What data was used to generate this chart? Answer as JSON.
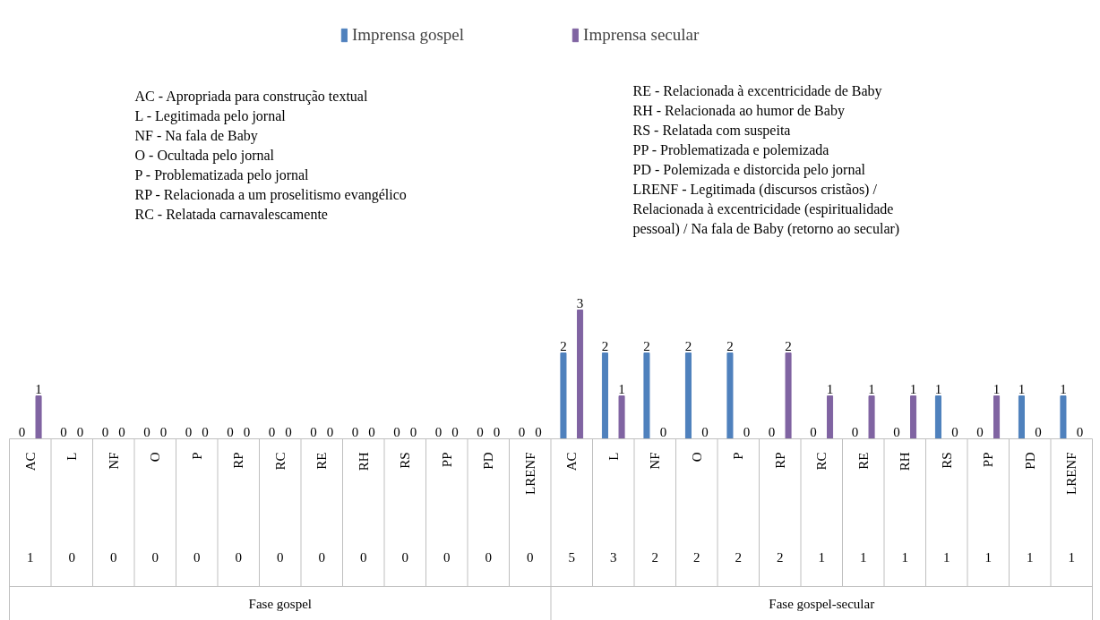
{
  "chart_data": {
    "type": "bar",
    "categories": [
      "AC",
      "L",
      "NF",
      "O",
      "P",
      "RP",
      "RC",
      "RE",
      "RH",
      "RS",
      "PP",
      "PD",
      "LRENF",
      "AC",
      "L",
      "NF",
      "O",
      "P",
      "RP",
      "RC",
      "RE",
      "RH",
      "RS",
      "PP",
      "PD",
      "LRENF"
    ],
    "series": [
      {
        "name": "Imprensa gospel",
        "color": "#4f81bd",
        "values": [
          0,
          0,
          0,
          0,
          0,
          0,
          0,
          0,
          0,
          0,
          0,
          0,
          0,
          2,
          2,
          2,
          2,
          2,
          0,
          0,
          0,
          0,
          1,
          0,
          1,
          1
        ]
      },
      {
        "name": "Imprensa secular",
        "color": "#8064a2",
        "values": [
          1,
          0,
          0,
          0,
          0,
          0,
          0,
          0,
          0,
          0,
          0,
          0,
          0,
          3,
          1,
          0,
          0,
          0,
          2,
          1,
          1,
          1,
          0,
          1,
          0,
          0
        ]
      }
    ],
    "data_labels": true,
    "legend": "top",
    "annotations": [
      "AC - Apropriada para construção textual\nL - Legitimada pelo jornal\nNF - Na fala de Baby\nO - Ocultada pelo jornal\nP - Problematizada pelo jornal\nRP - Relacionada a um proselitismo evangélico\nRC - Relatada carnavalescamente",
      "RE - Relacionada à excentricidade de Baby\nRH - Relacionada ao humor de Baby\nRS - Relatada com suspeita\nPP - Problematizada e polemizada\nPD - Polemizada e distorcida pelo jornal\nLRENF - Legitimada (discursos cristãos) /\nRelacionada à excentricidade (espiritualidade\npessoal) / Na fala de Baby (retorno ao secular)",
      "Fase gospel",
      "Fase gospel-secular",
      "1",
      "0",
      "0",
      "0",
      "0",
      "0",
      "0",
      "0",
      "0",
      "0",
      "0",
      "0",
      "0",
      "5",
      "3",
      "2",
      "2",
      "2",
      "2",
      "1",
      "1",
      "1",
      "1",
      "1",
      "1",
      "1"
    ]
  }
}
